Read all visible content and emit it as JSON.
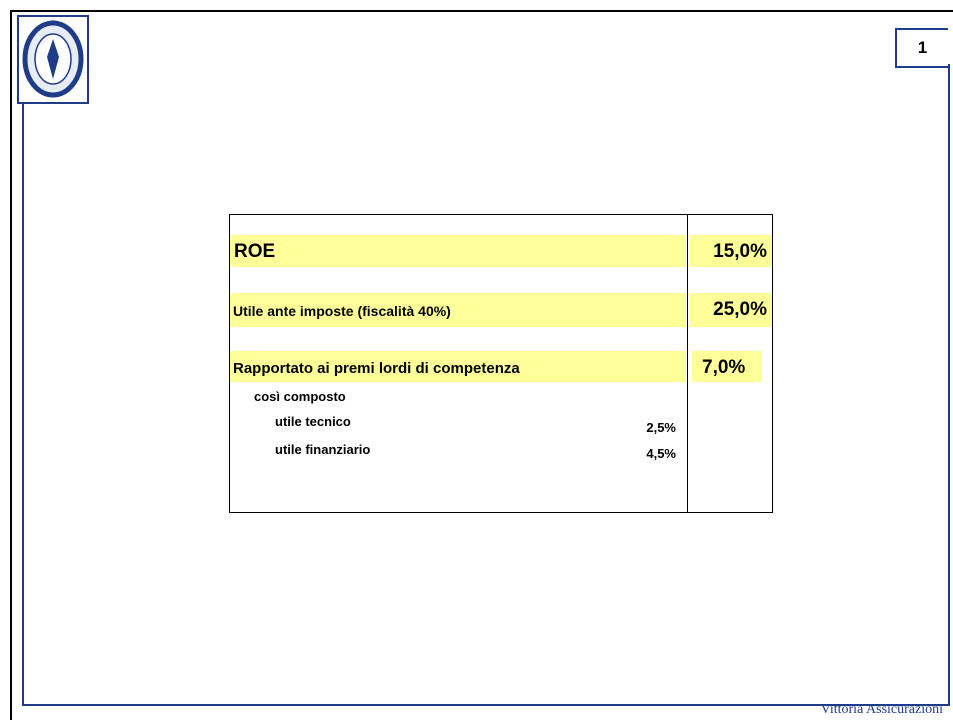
{
  "page_number": "1",
  "table": {
    "rows": [
      {
        "label": "ROE",
        "value": "15,0%"
      },
      {
        "label": "Utile ante imposte (fiscalità 40%)",
        "value": "25,0%"
      },
      {
        "label": "Rapportato ai premi lordi di competenza",
        "value": "7,0%"
      }
    ],
    "breakdown_title": "così composto",
    "breakdown": [
      {
        "label": "utile tecnico",
        "value": "2,5%"
      },
      {
        "label": "utile finanziario",
        "value": "4,5%"
      }
    ]
  },
  "footer": "Vittoria Assicurazioni"
}
